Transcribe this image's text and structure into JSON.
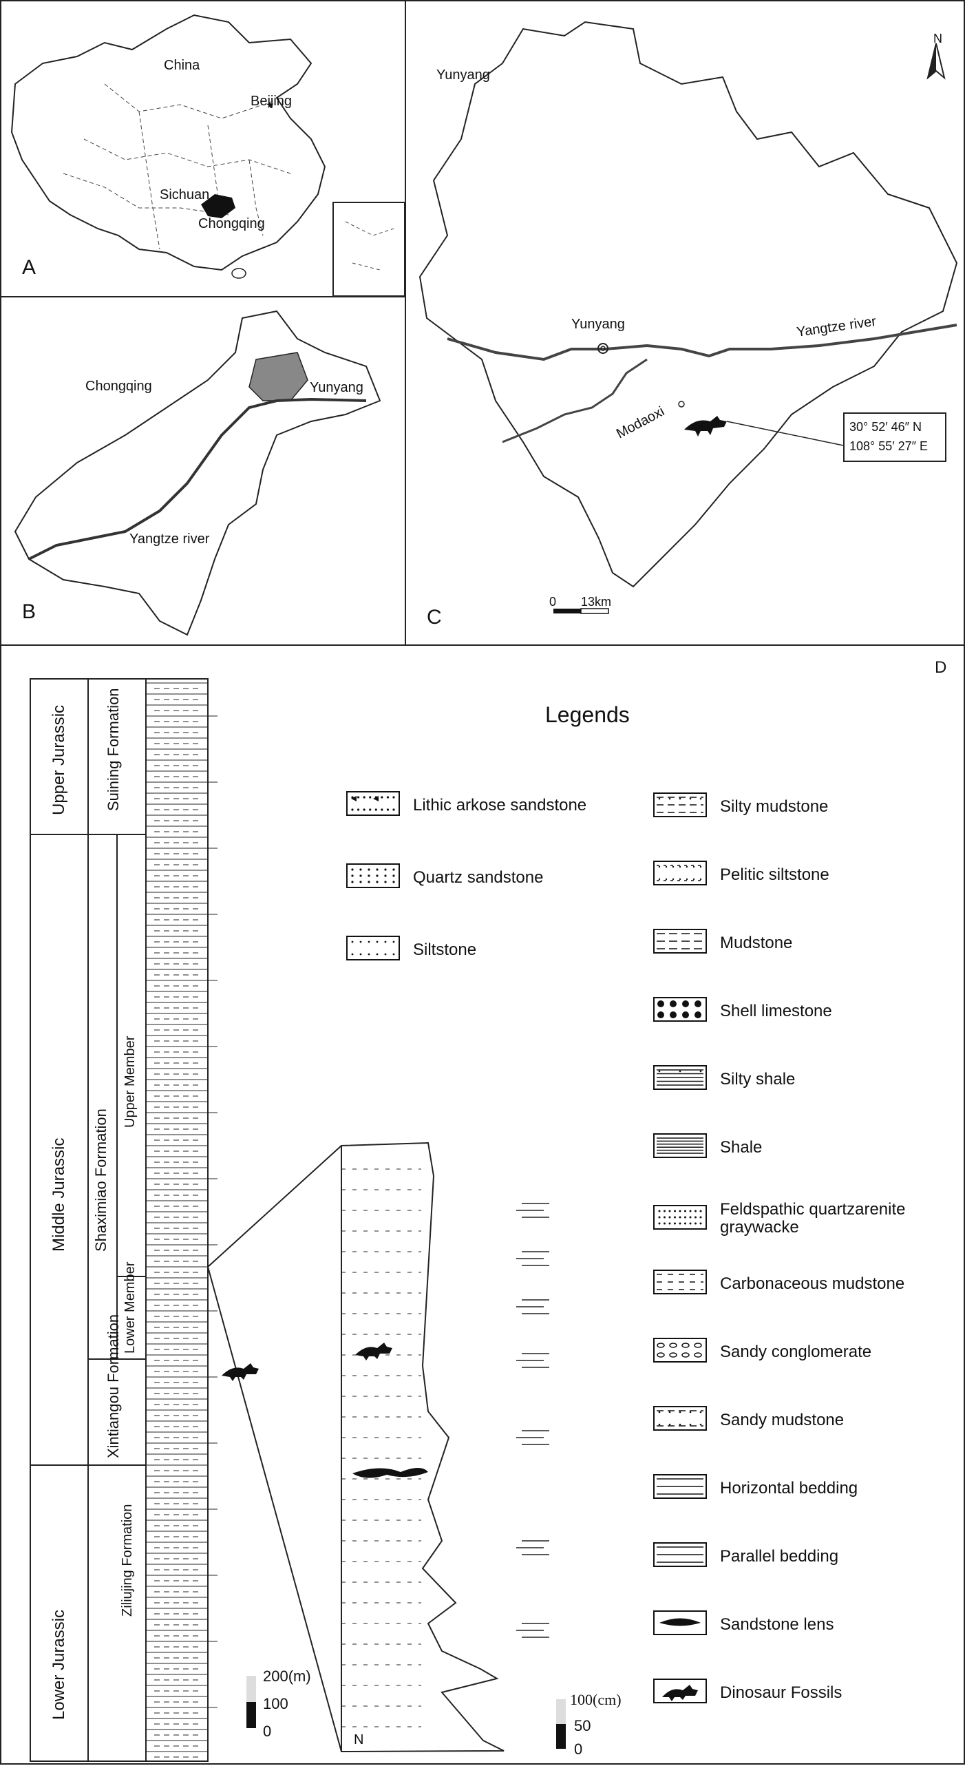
{
  "panelA": {
    "letter": "A",
    "china": "China",
    "beijing": "Beijing",
    "sichuan": "Sichuan",
    "chongqing": "Chongqing"
  },
  "panelB": {
    "letter": "B",
    "chongqing": "Chongqing",
    "yunyang": "Yunyang",
    "river": "Yangtze river"
  },
  "panelC": {
    "letter": "C",
    "yunyang_region": "Yunyang",
    "yunyang_city": "Yunyang",
    "river": "Yangtze river",
    "modaoxi": "Modaoxi",
    "coord_n": "30° 52′ 46″ N",
    "coord_e": "108° 55′ 27″ E",
    "scale_zero": "0",
    "scale_km": "13km",
    "north": "N"
  },
  "panelD": {
    "letter": "D",
    "legend_title": "Legends",
    "columns": {
      "series": [
        {
          "label": "Upper Jurassic"
        },
        {
          "label": "Middle Jurassic"
        },
        {
          "label": "Lower Jurassic"
        }
      ],
      "formations": [
        {
          "label": "Suining Formation"
        },
        {
          "label": "Shaximiao Formation"
        },
        {
          "label": "Xintiangou Formation"
        },
        {
          "label": "Ziliujing Formation"
        }
      ],
      "members": [
        {
          "label": "Upper Member"
        },
        {
          "label": "Lower Member"
        }
      ]
    },
    "scale_main": {
      "top": "200(m)",
      "mid": "100",
      "bottom": "0"
    },
    "scale_detail": {
      "top": "100(cm)",
      "mid": "50",
      "bottom": "0"
    },
    "detail_n_mark": "N",
    "legend_left": [
      {
        "label": "Lithic arkose sandstone",
        "icon": "lithic-arkose-icon"
      },
      {
        "label": "Quartz sandstone",
        "icon": "quartz-sandstone-icon"
      },
      {
        "label": "Siltstone",
        "icon": "siltstone-icon"
      }
    ],
    "legend_right": [
      {
        "label": "Silty mudstone",
        "icon": "silty-mudstone-icon"
      },
      {
        "label": "Pelitic siltstone",
        "icon": "pelitic-siltstone-icon"
      },
      {
        "label": "Mudstone",
        "icon": "mudstone-icon"
      },
      {
        "label": "Shell limestone",
        "icon": "shell-limestone-icon"
      },
      {
        "label": "Silty shale",
        "icon": "silty-shale-icon"
      },
      {
        "label": "Shale",
        "icon": "shale-icon"
      },
      {
        "label": "Feldspathic quartzarenite",
        "label2": "graywacke",
        "icon": "feldspathic-icon"
      },
      {
        "label": "Carbonaceous mudstone",
        "icon": "carbonaceous-icon"
      },
      {
        "label": "Sandy conglomerate",
        "icon": "sandy-conglomerate-icon"
      },
      {
        "label": "Sandy mudstone",
        "icon": "sandy-mudstone-icon"
      },
      {
        "label": "Horizontal bedding",
        "icon": "horizontal-bedding-icon"
      },
      {
        "label": "Parallel bedding",
        "icon": "parallel-bedding-icon"
      },
      {
        "label": "Sandstone lens",
        "icon": "sandstone-lens-icon"
      },
      {
        "label": "Dinosaur Fossils",
        "icon": "dinosaur-icon"
      }
    ]
  }
}
